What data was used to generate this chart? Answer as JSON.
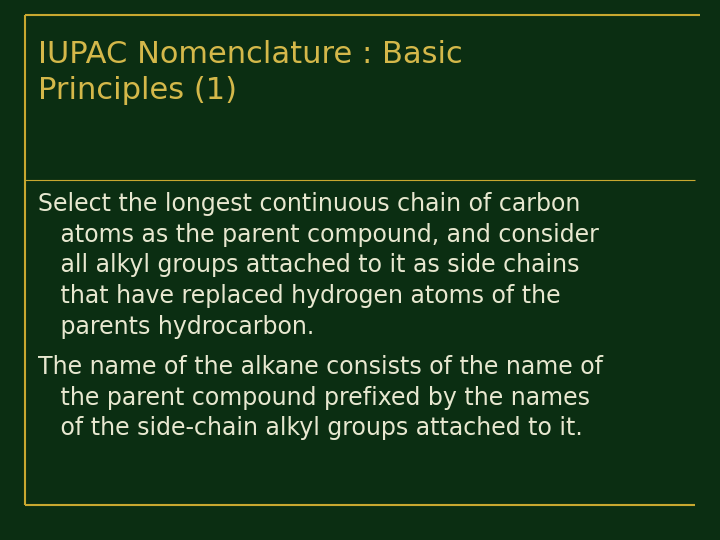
{
  "background_color": "#0b2e12",
  "title_text": "IUPAC Nomenclature : Basic\nPrinciples (1)",
  "title_color": "#d4b84a",
  "title_fontsize": 22,
  "title_font": "DejaVu Sans",
  "title_bold": false,
  "body_color": "#e8e8d0",
  "body_fontsize": 17,
  "body_font": "DejaVu Sans",
  "body_bold": false,
  "paragraph1_line1": "Select the longest continuous chain of carbon",
  "paragraph1_line2": "   atoms as the parent compound, and consider",
  "paragraph1_line3": "   all alkyl groups attached to it as side chains",
  "paragraph1_line4": "   that have replaced hydrogen atoms of the",
  "paragraph1_line5": "   parents hydrocarbon.",
  "paragraph2_line1": "The name of the alkane consists of the name of",
  "paragraph2_line2": "   the parent compound prefixed by the names",
  "paragraph2_line3": "   of the side-chain alkyl groups attached to it.",
  "border_color": "#c8a830",
  "bottom_line_color": "#c8a830"
}
